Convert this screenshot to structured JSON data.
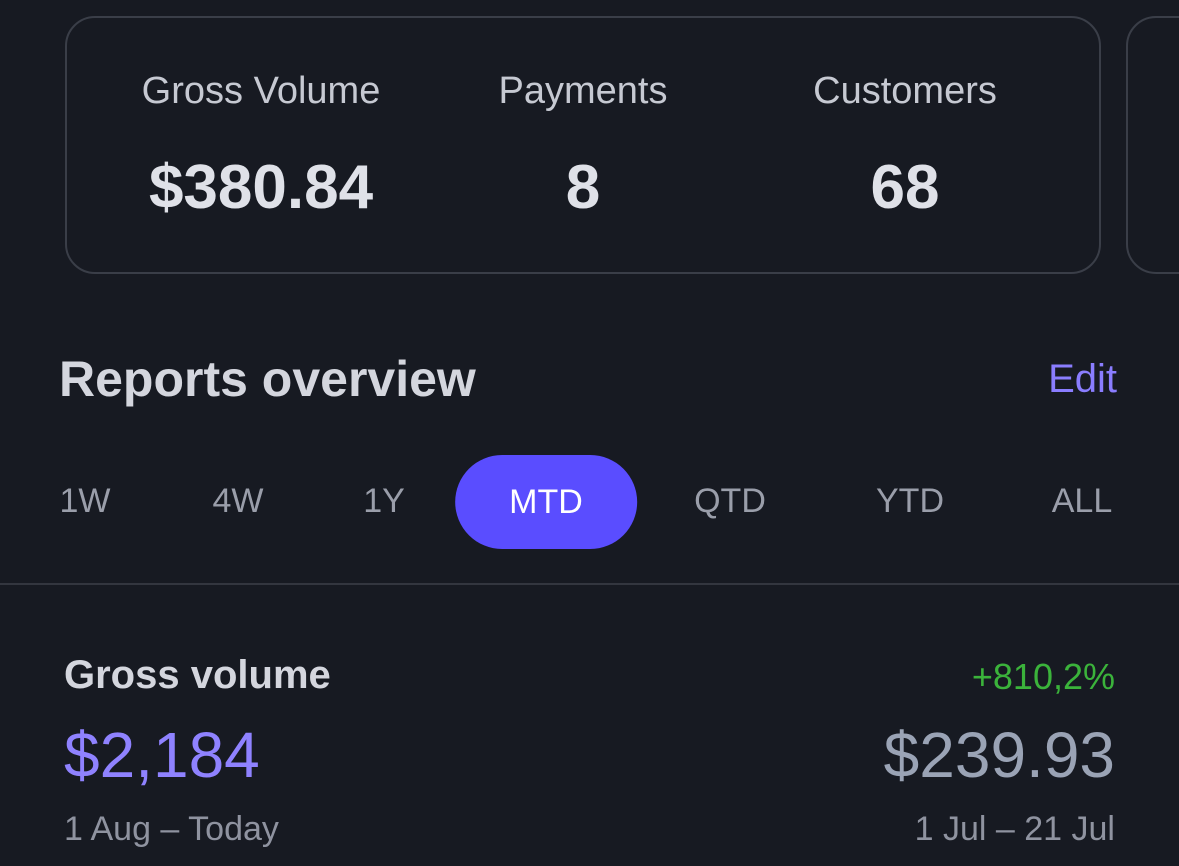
{
  "stats": [
    {
      "label": "Gross Volume",
      "value": "$380.84"
    },
    {
      "label": "Payments",
      "value": "8"
    },
    {
      "label": "Customers",
      "value": "68"
    }
  ],
  "section": {
    "title": "Reports overview",
    "action": "Edit"
  },
  "tabs": {
    "items": [
      "1W",
      "4W",
      "1Y",
      "MTD",
      "QTD",
      "YTD",
      "ALL"
    ],
    "selected": 3
  },
  "report": {
    "title": "Gross volume",
    "current_value": "$2,184",
    "current_period": "1 Aug – Today",
    "change": "+810,2%",
    "previous_value": "$239.93",
    "previous_period": "1 Jul – 21 Jul"
  }
}
